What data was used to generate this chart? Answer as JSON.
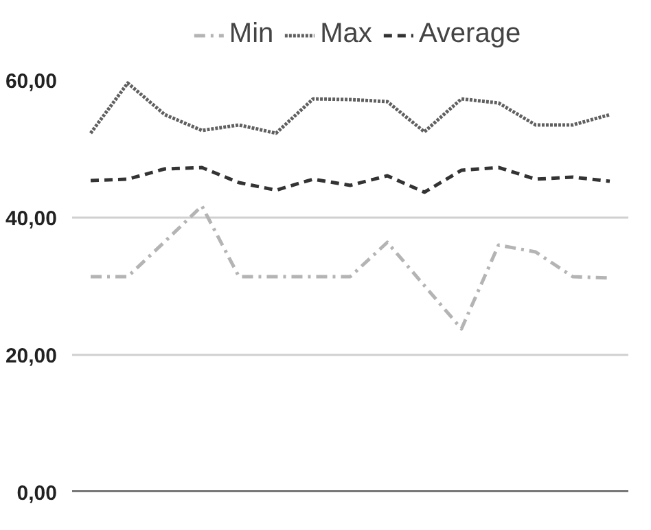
{
  "chart_data": {
    "type": "line",
    "categories": [
      null,
      null,
      null,
      null,
      null,
      null,
      null,
      null,
      null,
      null,
      null,
      null,
      null,
      null,
      null
    ],
    "series": [
      {
        "name": "Min",
        "color": "#b4b4b4",
        "line_style": "dashdot",
        "values": [
          31.4,
          31.4,
          36.5,
          41.7,
          31.4,
          31.4,
          31.4,
          31.4,
          36.4,
          30.1,
          23.8,
          36.0,
          35.0,
          31.4,
          31.2
        ]
      },
      {
        "name": "Max",
        "color": "#606060",
        "line_style": "dotted",
        "values": [
          52.3,
          59.6,
          55.0,
          52.7,
          53.5,
          52.3,
          57.3,
          57.2,
          56.9,
          52.5,
          57.3,
          56.7,
          53.5,
          53.5,
          55.0
        ]
      },
      {
        "name": "Average",
        "color": "#333333",
        "line_style": "dashed",
        "values": [
          45.4,
          45.6,
          47.1,
          47.3,
          45.1,
          44.0,
          45.6,
          44.7,
          46.1,
          43.7,
          46.9,
          47.3,
          45.6,
          45.9,
          45.3
        ]
      }
    ],
    "ylim": [
      0,
      60
    ],
    "yticks": [
      {
        "value": 0,
        "label": "0,00"
      },
      {
        "value": 20,
        "label": "20,00"
      },
      {
        "value": 40,
        "label": "40,00"
      },
      {
        "value": 60,
        "label": "60,00"
      }
    ],
    "grid": "y",
    "legend": "top",
    "tick_labels": "y",
    "marker": "none"
  }
}
